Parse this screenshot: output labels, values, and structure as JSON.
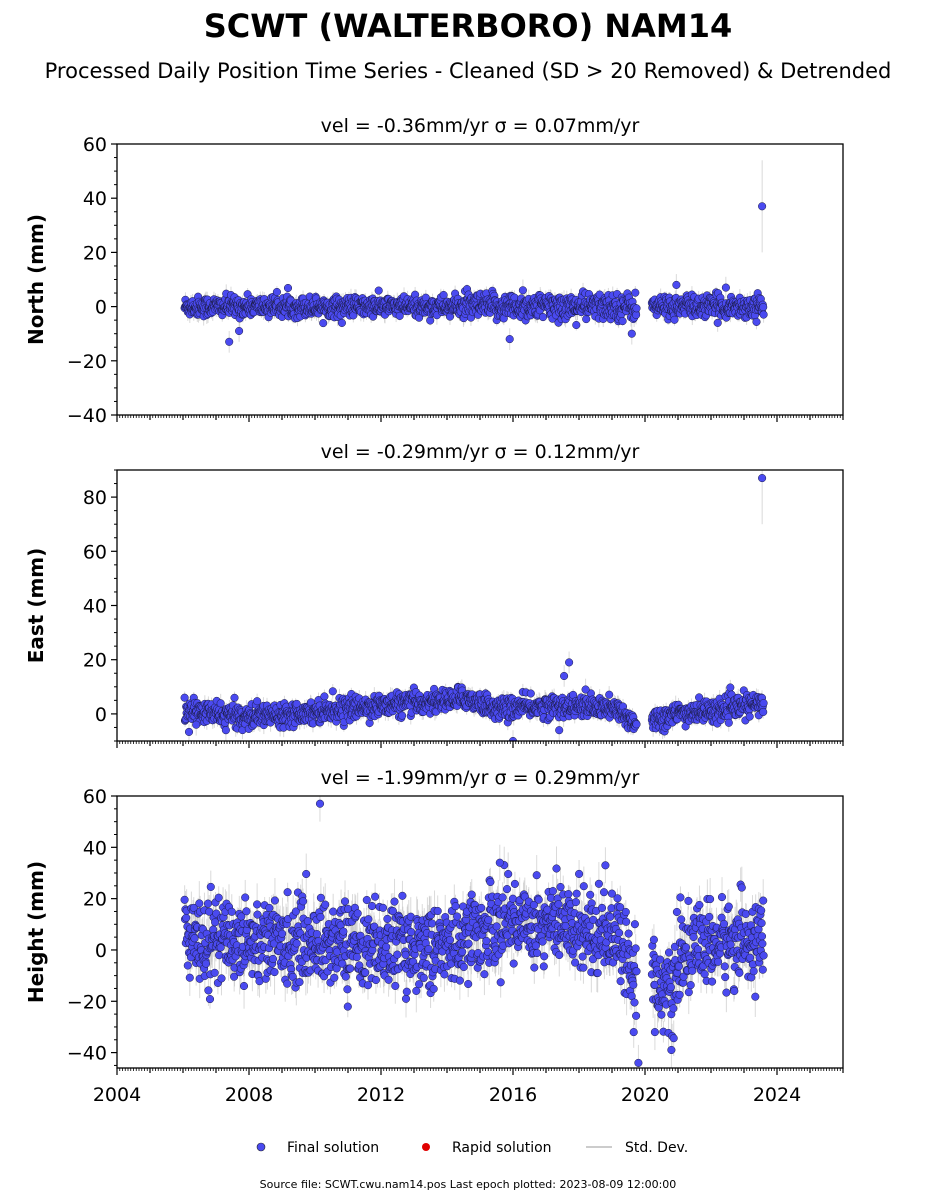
{
  "title": "SCWT (WALTERBORO) NAM14",
  "subtitle": "Processed Daily Position Time Series - Cleaned (SD > 20 Removed) & Detrended",
  "footer": "Source file: SCWT.cwu.nam14.pos  Last epoch plotted: 2023-08-09 12:00:00",
  "colors": {
    "final": "#4a4af0",
    "rapid": "#e00000",
    "stddev": "#bbbbbb"
  },
  "legend": [
    {
      "label": "Final solution",
      "marker": "circle",
      "color": "#4a4af0"
    },
    {
      "label": "Rapid solution",
      "marker": "circle",
      "color": "#e00000"
    },
    {
      "label": "Std. Dev.",
      "marker": "line",
      "color": "#bbbbbb"
    }
  ],
  "chart_data": [
    {
      "type": "scatter",
      "title": "vel = -0.36mm/yr   σ = 0.07mm/yr",
      "ylabel": "North (mm)",
      "xlim": [
        2004,
        2026
      ],
      "ylim": [
        -40,
        60
      ],
      "yticks": [
        -40,
        -20,
        0,
        20,
        40,
        60
      ],
      "series_name": "Final solution",
      "data_span": [
        2006.05,
        2023.6
      ],
      "gap": [
        2019.75,
        2020.2
      ],
      "noise_segments": [
        {
          "x": [
            2006.05,
            2014.5
          ],
          "sd": 1.8
        },
        {
          "x": [
            2014.5,
            2019.75
          ],
          "sd": 2.4
        },
        {
          "x": [
            2020.2,
            2023.6
          ],
          "sd": 2.0
        }
      ],
      "outliers": [
        {
          "x": 2007.4,
          "y": -13
        },
        {
          "x": 2007.7,
          "y": -9
        },
        {
          "x": 2015.9,
          "y": -12
        },
        {
          "x": 2016.3,
          "y": 6
        },
        {
          "x": 2019.6,
          "y": -10
        },
        {
          "x": 2020.95,
          "y": 8
        },
        {
          "x": 2022.45,
          "y": 7
        },
        {
          "x": 2023.55,
          "y": 37
        }
      ]
    },
    {
      "type": "scatter",
      "title": "vel = -0.29mm/yr   σ = 0.12mm/yr",
      "ylabel": "East (mm)",
      "xlim": [
        2004,
        2026
      ],
      "ylim": [
        -10,
        90
      ],
      "yticks": [
        0,
        20,
        40,
        60,
        80
      ],
      "series_name": "Final solution",
      "data_span": [
        2006.05,
        2023.6
      ],
      "gap": [
        2019.75,
        2020.2
      ],
      "trend": [
        {
          "x": 2006.05,
          "y": 1
        },
        {
          "x": 2008,
          "y": -1
        },
        {
          "x": 2010,
          "y": 1
        },
        {
          "x": 2012,
          "y": 3
        },
        {
          "x": 2014,
          "y": 5
        },
        {
          "x": 2014.6,
          "y": 6
        },
        {
          "x": 2015.5,
          "y": 2
        },
        {
          "x": 2017.5,
          "y": 3
        },
        {
          "x": 2019,
          "y": 2
        },
        {
          "x": 2019.7,
          "y": -3
        },
        {
          "x": 2020.3,
          "y": -2
        },
        {
          "x": 2021,
          "y": 0
        },
        {
          "x": 2022,
          "y": 1
        },
        {
          "x": 2023.6,
          "y": 4
        }
      ],
      "noise_sd": 2.0,
      "outliers": [
        {
          "x": 2006.4,
          "y": -4
        },
        {
          "x": 2007.3,
          "y": -6
        },
        {
          "x": 2016.0,
          "y": -10
        },
        {
          "x": 2017.4,
          "y": -6
        },
        {
          "x": 2017.55,
          "y": 14
        },
        {
          "x": 2017.7,
          "y": 19
        },
        {
          "x": 2018.2,
          "y": 9
        },
        {
          "x": 2023.55,
          "y": 87
        }
      ]
    },
    {
      "type": "scatter",
      "title": "vel = -1.99mm/yr   σ = 0.29mm/yr",
      "ylabel": "Height (mm)",
      "xlim": [
        2004,
        2026
      ],
      "ylim": [
        -46,
        60
      ],
      "yticks": [
        -40,
        -20,
        0,
        20,
        40,
        60
      ],
      "xticks": [
        2004,
        2008,
        2012,
        2016,
        2020,
        2024
      ],
      "series_name": "Final solution",
      "data_span": [
        2006.05,
        2023.6
      ],
      "gap": [
        2019.75,
        2020.2
      ],
      "trend": [
        {
          "x": 2006.05,
          "y": 5
        },
        {
          "x": 2010,
          "y": 3
        },
        {
          "x": 2014,
          "y": 1
        },
        {
          "x": 2014.5,
          "y": 5
        },
        {
          "x": 2016,
          "y": 12
        },
        {
          "x": 2018,
          "y": 9
        },
        {
          "x": 2019.3,
          "y": 6
        },
        {
          "x": 2019.7,
          "y": -12
        },
        {
          "x": 2020.3,
          "y": -8
        },
        {
          "x": 2020.7,
          "y": -20
        },
        {
          "x": 2021.2,
          "y": 0
        },
        {
          "x": 2022,
          "y": 2
        },
        {
          "x": 2023.6,
          "y": 5
        }
      ],
      "noise_sd": 8.0,
      "outliers": [
        {
          "x": 2010.15,
          "y": 57
        },
        {
          "x": 2015.6,
          "y": 34
        },
        {
          "x": 2018.8,
          "y": 33
        },
        {
          "x": 2019.8,
          "y": -44
        },
        {
          "x": 2020.8,
          "y": -39
        },
        {
          "x": 2020.3,
          "y": -32
        }
      ]
    }
  ]
}
